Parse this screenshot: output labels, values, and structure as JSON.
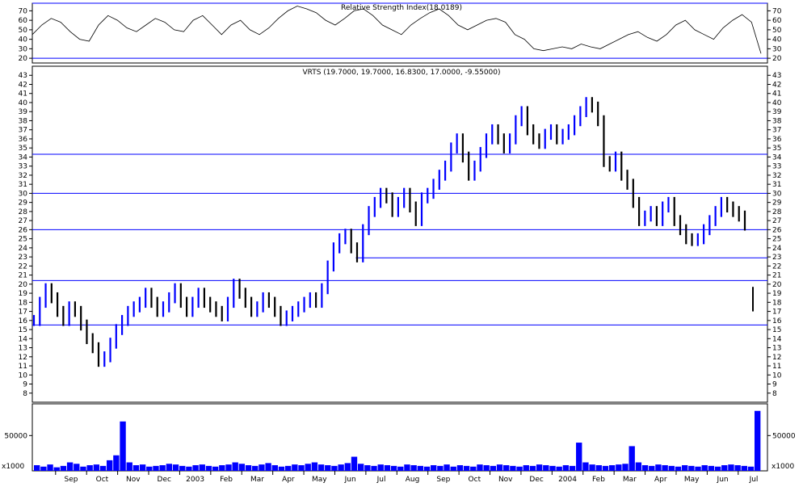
{
  "chart_data": [
    {
      "type": "line",
      "panel": "rsi",
      "title": "Relative Strength Index(18.0189)",
      "ylim": [
        15,
        78
      ],
      "yticks": [
        20,
        30,
        40,
        50,
        60,
        70
      ],
      "horizontal_lines": [
        20,
        78
      ],
      "series": [
        {
          "values": [
            45,
            55,
            62,
            58,
            48,
            40,
            38,
            55,
            65,
            60,
            52,
            48,
            55,
            62,
            58,
            50,
            48,
            60,
            65,
            55,
            45,
            55,
            60,
            50,
            45,
            52,
            62,
            70,
            75,
            72,
            68,
            60,
            55,
            62,
            70,
            72,
            65,
            55,
            50,
            45,
            55,
            62,
            68,
            72,
            65,
            55,
            50,
            55,
            60,
            62,
            58,
            45,
            40,
            30,
            28,
            30,
            32,
            30,
            35,
            32,
            30,
            35,
            40,
            45,
            48,
            42,
            38,
            45,
            55,
            60,
            50,
            45,
            40,
            52,
            60,
            66,
            58,
            25
          ]
        }
      ]
    },
    {
      "type": "bar",
      "panel": "price",
      "title": "VRTS (19.7000, 19.7000, 16.8300, 17.0000, -9.55000)",
      "ylim": [
        7,
        44
      ],
      "yticks": [
        8,
        9,
        10,
        11,
        12,
        13,
        14,
        15,
        16,
        17,
        18,
        19,
        20,
        21,
        22,
        23,
        24,
        25,
        26,
        27,
        28,
        29,
        30,
        31,
        32,
        33,
        34,
        35,
        36,
        37,
        38,
        39,
        40,
        41,
        42,
        43
      ],
      "horizontal_lines": [
        15.5,
        20.4,
        26,
        30,
        34.3
      ],
      "partial_lines": [
        {
          "y": 22.9,
          "x_start": 0.44
        }
      ],
      "series": [
        {
          "name": "",
          "values": [
            16,
            18,
            19.5,
            18.5,
            17,
            16,
            17.5,
            17,
            15.5,
            14,
            13,
            11.5,
            12,
            13.5,
            15,
            16,
            17,
            17.5,
            18,
            19,
            18,
            17,
            17.5,
            18.5,
            19.5,
            18,
            17,
            18,
            19,
            18,
            17.5,
            17,
            16.5,
            18,
            20,
            19,
            18,
            17,
            17.5,
            18.5,
            18,
            17,
            16,
            16.5,
            17,
            17.5,
            18,
            18.5,
            18,
            19.5,
            22,
            24,
            25,
            25.5,
            24,
            23,
            26,
            28,
            29,
            30,
            29.5,
            28,
            29,
            30,
            28.5,
            27,
            29.5,
            30,
            31,
            32,
            33,
            35,
            36,
            34,
            32,
            33,
            34.5,
            36,
            37,
            36,
            35,
            36,
            38,
            39,
            37,
            36,
            35.5,
            36.5,
            37,
            36,
            36.5,
            37,
            38,
            39,
            40,
            39.5,
            38,
            33.5,
            33,
            34,
            32,
            31,
            29,
            27,
            27.5,
            28,
            27,
            28.5,
            29,
            27,
            26,
            25,
            24.8,
            25,
            26,
            27,
            28,
            29,
            28.5,
            28,
            27.5,
            26.5
          ]
        }
      ],
      "gap_bar": {
        "low": 17.0,
        "high": 19.7
      }
    },
    {
      "type": "bar",
      "panel": "volume",
      "ylabel": "x1000",
      "ylim": [
        0,
        95000
      ],
      "yticks": [
        50000
      ],
      "series": [
        {
          "values": [
            8000,
            6000,
            9000,
            5000,
            7000,
            12000,
            10000,
            6000,
            8000,
            9000,
            7000,
            15000,
            22000,
            70000,
            12000,
            8000,
            9000,
            6000,
            7000,
            8000,
            10000,
            9000,
            7000,
            6000,
            8000,
            9000,
            7000,
            6000,
            8000,
            9000,
            12000,
            10000,
            8000,
            7000,
            9000,
            11000,
            8000,
            6000,
            7000,
            9000,
            8000,
            10000,
            12000,
            9000,
            8000,
            7000,
            9000,
            11000,
            20000,
            10000,
            8000,
            7000,
            9000,
            8000,
            7000,
            6000,
            9000,
            8000,
            7000,
            6000,
            8000,
            7000,
            9000,
            6000,
            8000,
            7000,
            6000,
            9000,
            8000,
            7000,
            9000,
            8000,
            7000,
            6000,
            8000,
            7000,
            9000,
            8000,
            7000,
            6000,
            8000,
            7000,
            40000,
            12000,
            9000,
            8000,
            7000,
            8000,
            9000,
            10000,
            35000,
            12000,
            8000,
            7000,
            9000,
            8000,
            7000,
            6000,
            8000,
            7000,
            6000,
            8000,
            7000,
            6000,
            8000,
            9000,
            8000,
            7000,
            6000,
            85000
          ]
        }
      ]
    },
    {
      "type": "axis",
      "x_tick_labels": [
        "Sep",
        "Oct",
        "Nov",
        "Dec",
        "2003",
        "Feb",
        "Mar",
        "Apr",
        "May",
        "Jun",
        "Jul",
        "Aug",
        "Sep",
        "Oct",
        "Nov",
        "Dec",
        "2004",
        "Feb",
        "Mar",
        "Apr",
        "May",
        "Jun",
        "Jul"
      ]
    }
  ],
  "colors": {
    "bars": "#0000ff",
    "bars_down": "#000000",
    "reference_lines": "#0000ff",
    "rsi_line": "#000000",
    "frame": "#000000",
    "background": "#ffffff"
  }
}
